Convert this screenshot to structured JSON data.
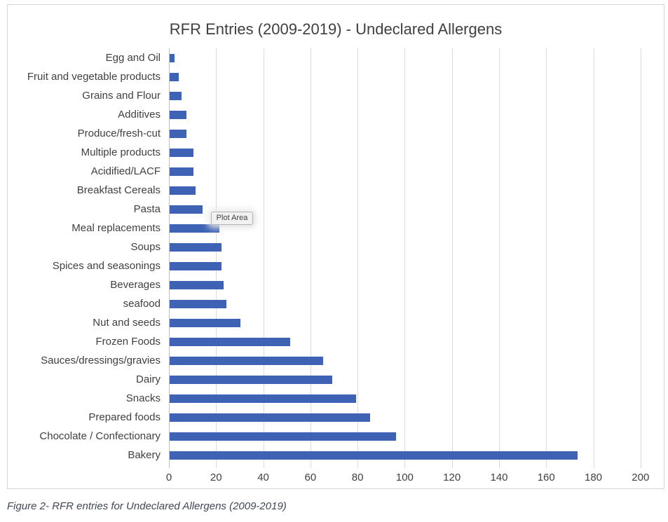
{
  "chart": {
    "tooltip_label": "Plot Area",
    "caption": "Figure 2- RFR entries for Undeclared Allergens (2009-2019)"
  },
  "chart_data": {
    "type": "bar",
    "orientation": "horizontal",
    "title": "RFR Entries (2009-2019) - Undeclared Allergens",
    "categories": [
      "Egg and Oil",
      "Fruit and vegetable products",
      "Grains and Flour",
      "Additives",
      "Produce/fresh-cut",
      "Multiple products",
      "Acidified/LACF",
      "Breakfast Cereals",
      "Pasta",
      "Meal replacements",
      "Soups",
      "Spices and seasonings",
      "Beverages",
      "seafood",
      "Nut and seeds",
      "Frozen Foods",
      "Sauces/dressings/gravies",
      "Dairy",
      "Snacks",
      "Prepared foods",
      "Chocolate / Confectionary",
      "Bakery"
    ],
    "values": [
      2,
      4,
      5,
      7,
      7,
      10,
      10,
      11,
      14,
      21,
      22,
      22,
      23,
      24,
      30,
      51,
      65,
      69,
      79,
      85,
      96,
      173
    ],
    "xlabel": "",
    "ylabel": "",
    "xlim": [
      0,
      200
    ],
    "xticks": [
      0,
      20,
      40,
      60,
      80,
      100,
      120,
      140,
      160,
      180,
      200
    ],
    "grid": true,
    "legend": false,
    "colors": {
      "bar": "#3e63b5",
      "gridline": "#d9d9d9",
      "axis_line": "#bfbfbf",
      "text": "#404040",
      "caption": "#404756"
    }
  }
}
